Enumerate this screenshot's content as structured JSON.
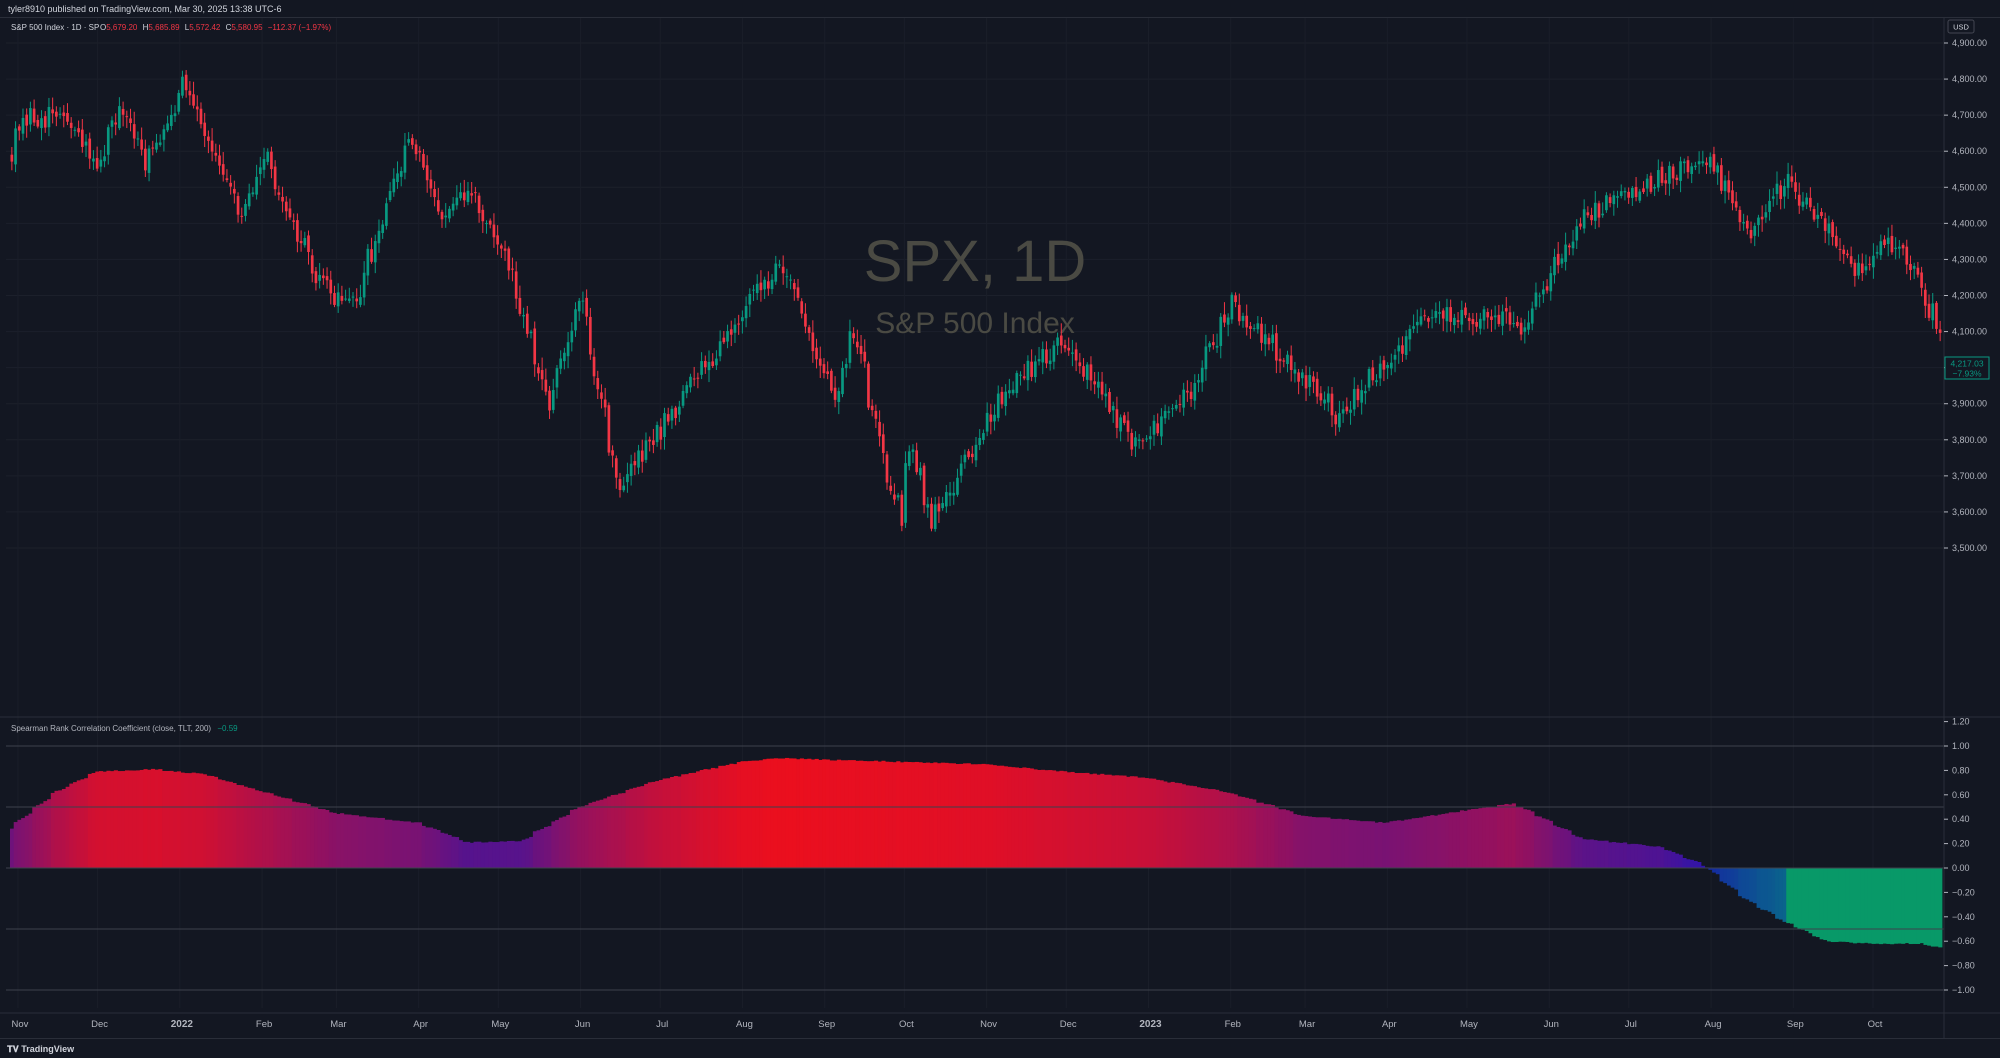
{
  "header": {
    "publisher": "tyler8910 published on TradingView.com, Mar 30, 2025 13:38 UTC-6"
  },
  "footer": {
    "brand": "TradingView"
  },
  "legend": {
    "symbol": "S&P 500 Index · 1D · SP",
    "o_label": "O",
    "o": "5,679.20",
    "h_label": "H",
    "h": "5,685.89",
    "l_label": "L",
    "l": "5,572.42",
    "c_label": "C",
    "c": "5,580.95",
    "change": "−112.37 (−1.97%)"
  },
  "watermark": {
    "title": "SPX, 1D",
    "subtitle": "S&P 500 Index"
  },
  "currency": "USD",
  "price_label": {
    "value": "4,217.03",
    "change": "−7.93%"
  },
  "indicator_legend": {
    "name": "Spearman Rank Correlation Coefficient (close, TLT, 200)",
    "value": "−0.59"
  },
  "colors": {
    "up": "#089981",
    "down": "#f23645",
    "background": "#131722",
    "grid": "#2a2e39",
    "text": "#b2b5be"
  },
  "chart_data": [
    {
      "type": "candlestick",
      "title": "SPX, 1D",
      "subtitle": "S&P 500 Index",
      "ylim": [
        3450,
        4950
      ],
      "yticks": [
        "4,900.00",
        "4,800.00",
        "4,700.00",
        "4,600.00",
        "4,500.00",
        "4,400.00",
        "4,300.00",
        "4,200.00",
        "4,100.00",
        "4,000.00",
        "3,900.00",
        "3,800.00",
        "3,700.00",
        "3,600.00",
        "3,500.00"
      ],
      "ytick_values": [
        4900,
        4800,
        4700,
        4600,
        4500,
        4400,
        4300,
        4200,
        4100,
        4000,
        3900,
        3800,
        3700,
        3600,
        3500
      ],
      "x_range": [
        "2021-10-29",
        "2023-10-27"
      ],
      "x_ticks": [
        {
          "label": "Nov",
          "date": "2021-11-01"
        },
        {
          "label": "Dec",
          "date": "2021-12-01"
        },
        {
          "label": "2022",
          "date": "2022-01-01"
        },
        {
          "label": "Feb",
          "date": "2022-02-01"
        },
        {
          "label": "Mar",
          "date": "2022-03-01"
        },
        {
          "label": "Apr",
          "date": "2022-04-01"
        },
        {
          "label": "May",
          "date": "2022-05-01"
        },
        {
          "label": "Jun",
          "date": "2022-06-01"
        },
        {
          "label": "Jul",
          "date": "2022-07-01"
        },
        {
          "label": "Aug",
          "date": "2022-08-01"
        },
        {
          "label": "Sep",
          "date": "2022-09-01"
        },
        {
          "label": "Oct",
          "date": "2022-10-01"
        },
        {
          "label": "Nov",
          "date": "2022-11-01"
        },
        {
          "label": "Dec",
          "date": "2022-12-01"
        },
        {
          "label": "2023",
          "date": "2023-01-01"
        },
        {
          "label": "Feb",
          "date": "2023-02-01"
        },
        {
          "label": "Mar",
          "date": "2023-03-01"
        },
        {
          "label": "Apr",
          "date": "2023-04-01"
        },
        {
          "label": "May",
          "date": "2023-05-01"
        },
        {
          "label": "Jun",
          "date": "2023-06-01"
        },
        {
          "label": "Jul",
          "date": "2023-07-01"
        },
        {
          "label": "Aug",
          "date": "2023-08-01"
        },
        {
          "label": "Sep",
          "date": "2023-09-01"
        },
        {
          "label": "Oct",
          "date": "2023-10-01"
        }
      ],
      "close_path": [
        {
          "date": "2021-10-29",
          "close": 4600
        },
        {
          "date": "2021-11-05",
          "close": 4690
        },
        {
          "date": "2021-11-18",
          "close": 4700
        },
        {
          "date": "2021-11-30",
          "close": 4560
        },
        {
          "date": "2021-12-10",
          "close": 4710
        },
        {
          "date": "2021-12-20",
          "close": 4570
        },
        {
          "date": "2022-01-03",
          "close": 4800
        },
        {
          "date": "2022-01-10",
          "close": 4680
        },
        {
          "date": "2022-01-24",
          "close": 4400
        },
        {
          "date": "2022-02-02",
          "close": 4590
        },
        {
          "date": "2022-02-23",
          "close": 4230
        },
        {
          "date": "2022-03-08",
          "close": 4170
        },
        {
          "date": "2022-03-29",
          "close": 4630
        },
        {
          "date": "2022-04-11",
          "close": 4410
        },
        {
          "date": "2022-04-21",
          "close": 4490
        },
        {
          "date": "2022-05-04",
          "close": 4300
        },
        {
          "date": "2022-05-20",
          "close": 3900
        },
        {
          "date": "2022-06-02",
          "close": 4180
        },
        {
          "date": "2022-06-16",
          "close": 3670
        },
        {
          "date": "2022-07-08",
          "close": 3900
        },
        {
          "date": "2022-08-16",
          "close": 4300
        },
        {
          "date": "2022-09-06",
          "close": 3910
        },
        {
          "date": "2022-09-12",
          "close": 4110
        },
        {
          "date": "2022-09-30",
          "close": 3590
        },
        {
          "date": "2022-10-04",
          "close": 3790
        },
        {
          "date": "2022-10-12",
          "close": 3580
        },
        {
          "date": "2022-11-10",
          "close": 3950
        },
        {
          "date": "2022-12-01",
          "close": 4080
        },
        {
          "date": "2022-12-28",
          "close": 3780
        },
        {
          "date": "2023-01-18",
          "close": 3930
        },
        {
          "date": "2023-02-02",
          "close": 4180
        },
        {
          "date": "2023-03-09",
          "close": 3920
        },
        {
          "date": "2023-03-13",
          "close": 3850
        },
        {
          "date": "2023-04-18",
          "close": 4150
        },
        {
          "date": "2023-05-24",
          "close": 4120
        },
        {
          "date": "2023-06-15",
          "close": 4420
        },
        {
          "date": "2023-07-31",
          "close": 4590
        },
        {
          "date": "2023-08-18",
          "close": 4370
        },
        {
          "date": "2023-08-31",
          "close": 4520
        },
        {
          "date": "2023-09-26",
          "close": 4270
        },
        {
          "date": "2023-10-12",
          "close": 4360
        },
        {
          "date": "2023-10-27",
          "close": 4117
        }
      ]
    },
    {
      "type": "bar",
      "title": "Spearman Rank Correlation Coefficient (close, TLT, 200)",
      "ylim": [
        -1.1,
        1.2
      ],
      "yticks": [
        "1.20",
        "1.00",
        "0.80",
        "0.60",
        "0.40",
        "0.20",
        "0.00",
        "−0.20",
        "−0.40",
        "−0.60",
        "−0.80",
        "−1.00"
      ],
      "ytick_values": [
        1.2,
        1.0,
        0.8,
        0.6,
        0.4,
        0.2,
        0.0,
        -0.2,
        -0.4,
        -0.6,
        -0.8,
        -1.0
      ],
      "reference_lines": [
        1.0,
        0.5,
        0.0,
        -0.5,
        -1.0
      ],
      "last_value": -0.59,
      "series_path": [
        {
          "date": "2021-10-29",
          "value": 0.32
        },
        {
          "date": "2021-11-15",
          "value": 0.62
        },
        {
          "date": "2021-12-01",
          "value": 0.79
        },
        {
          "date": "2021-12-22",
          "value": 0.81
        },
        {
          "date": "2022-01-10",
          "value": 0.77
        },
        {
          "date": "2022-02-01",
          "value": 0.63
        },
        {
          "date": "2022-03-01",
          "value": 0.45
        },
        {
          "date": "2022-04-01",
          "value": 0.37
        },
        {
          "date": "2022-04-20",
          "value": 0.21
        },
        {
          "date": "2022-05-10",
          "value": 0.22
        },
        {
          "date": "2022-06-01",
          "value": 0.5
        },
        {
          "date": "2022-07-01",
          "value": 0.72
        },
        {
          "date": "2022-08-01",
          "value": 0.87
        },
        {
          "date": "2022-08-15",
          "value": 0.9
        },
        {
          "date": "2022-10-01",
          "value": 0.87
        },
        {
          "date": "2022-11-01",
          "value": 0.85
        },
        {
          "date": "2022-12-01",
          "value": 0.79
        },
        {
          "date": "2023-01-01",
          "value": 0.74
        },
        {
          "date": "2023-02-01",
          "value": 0.62
        },
        {
          "date": "2023-03-01",
          "value": 0.43
        },
        {
          "date": "2023-04-01",
          "value": 0.37
        },
        {
          "date": "2023-05-01",
          "value": 0.47
        },
        {
          "date": "2023-05-20",
          "value": 0.53
        },
        {
          "date": "2023-06-15",
          "value": 0.24
        },
        {
          "date": "2023-07-15",
          "value": 0.17
        },
        {
          "date": "2023-07-31",
          "value": 0.02
        },
        {
          "date": "2023-08-15",
          "value": -0.25
        },
        {
          "date": "2023-08-31",
          "value": -0.45
        },
        {
          "date": "2023-09-15",
          "value": -0.6
        },
        {
          "date": "2023-10-01",
          "value": -0.62
        },
        {
          "date": "2023-10-20",
          "value": -0.62
        },
        {
          "date": "2023-10-27",
          "value": -0.65
        }
      ]
    }
  ]
}
